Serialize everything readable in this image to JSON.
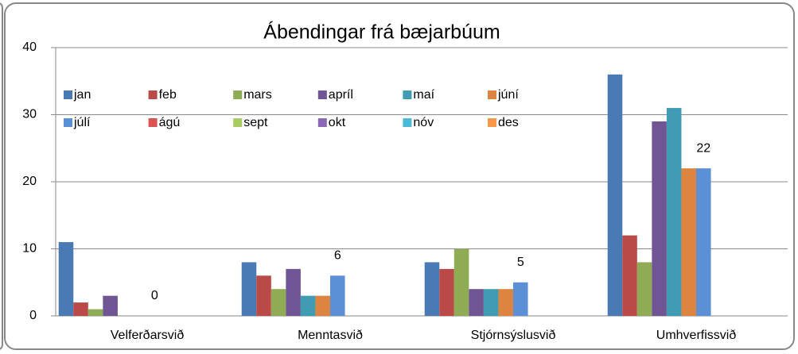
{
  "chart_data": {
    "type": "bar",
    "title": "Ábendingar frá bæjarbúum",
    "categories": [
      "Velferðarsvið",
      "Menntasvið",
      "Stjórnsýslusvið",
      "Umhverfissvið"
    ],
    "series": [
      {
        "name": "jan",
        "color": "#4a7ab4",
        "values": [
          11,
          8,
          8,
          36
        ]
      },
      {
        "name": "feb",
        "color": "#b94a47",
        "values": [
          2,
          6,
          7,
          12
        ]
      },
      {
        "name": "mars",
        "color": "#8fac55",
        "values": [
          1,
          4,
          10,
          8
        ]
      },
      {
        "name": "apríl",
        "color": "#6f5594",
        "values": [
          3,
          7,
          4,
          29
        ]
      },
      {
        "name": "maí",
        "color": "#3f9cb3",
        "values": [
          0,
          3,
          4,
          31
        ]
      },
      {
        "name": "júní",
        "color": "#dc8440",
        "values": [
          0,
          3,
          4,
          22
        ]
      },
      {
        "name": "júlí",
        "color": "#5b8fd6",
        "values": [
          0,
          6,
          5,
          22
        ],
        "data_labels": true
      },
      {
        "name": "ágú",
        "color": "#dc5452",
        "values": [
          null,
          null,
          null,
          null
        ]
      },
      {
        "name": "sept",
        "color": "#a8cc62",
        "values": [
          null,
          null,
          null,
          null
        ]
      },
      {
        "name": "okt",
        "color": "#8a68b5",
        "values": [
          null,
          null,
          null,
          null
        ]
      },
      {
        "name": "nóv",
        "color": "#4bbad6",
        "values": [
          null,
          null,
          null,
          null
        ]
      },
      {
        "name": "des",
        "color": "#f8984a",
        "values": [
          null,
          null,
          null,
          null
        ]
      }
    ],
    "ylim": [
      0,
      40
    ],
    "yticks": [
      0,
      10,
      20,
      30,
      40
    ],
    "grid": true,
    "legend": "top-left"
  }
}
